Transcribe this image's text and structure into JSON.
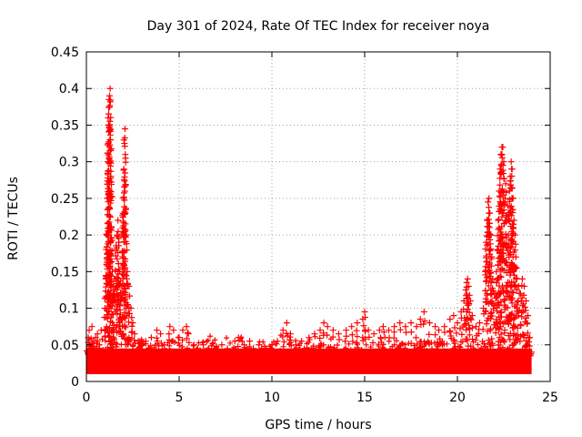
{
  "chart_data": {
    "type": "scatter",
    "title": "Day 301 of 2024, Rate Of TEC Index for receiver noya",
    "xlabel": "GPS time / hours",
    "ylabel": "ROTI / TECUs",
    "xlim": [
      0,
      25
    ],
    "ylim": [
      0,
      0.45
    ],
    "grid": true,
    "marker": "+",
    "color": "#ff0000",
    "x_ticks": [
      "0",
      "5",
      "10",
      "15",
      "20",
      "25"
    ],
    "y_ticks": [
      "0",
      "0.05",
      "0.1",
      "0.15",
      "0.2",
      "0.25",
      "0.3",
      "0.35",
      "0.4",
      "0.45"
    ],
    "x_tick_values": [
      0,
      5,
      10,
      15,
      20,
      25
    ],
    "y_tick_values": [
      0,
      0.05,
      0.1,
      0.15,
      0.2,
      0.25,
      0.3,
      0.35,
      0.4,
      0.45
    ],
    "background_band": {
      "x_range": [
        0,
        24
      ],
      "y_range": [
        0.01,
        0.045
      ],
      "note": "dense continuous cloud of points"
    },
    "series": [
      {
        "name": "ROTI",
        "points": [
          [
            0.1,
            0.06
          ],
          [
            0.15,
            0.07
          ],
          [
            0.2,
            0.05
          ],
          [
            0.3,
            0.075
          ],
          [
            0.4,
            0.055
          ],
          [
            0.5,
            0.06
          ],
          [
            0.6,
            0.065
          ],
          [
            0.7,
            0.05
          ],
          [
            0.8,
            0.07
          ],
          [
            1.0,
            0.1
          ],
          [
            1.05,
            0.14
          ],
          [
            1.1,
            0.2
          ],
          [
            1.12,
            0.25
          ],
          [
            1.15,
            0.3
          ],
          [
            1.18,
            0.325
          ],
          [
            1.2,
            0.35
          ],
          [
            1.22,
            0.385
          ],
          [
            1.25,
            0.39
          ],
          [
            1.28,
            0.4
          ],
          [
            1.3,
            0.33
          ],
          [
            1.32,
            0.28
          ],
          [
            1.35,
            0.21
          ],
          [
            1.4,
            0.15
          ],
          [
            1.45,
            0.13
          ],
          [
            1.5,
            0.12
          ],
          [
            1.55,
            0.14
          ],
          [
            1.6,
            0.18
          ],
          [
            1.65,
            0.2
          ],
          [
            1.7,
            0.22
          ],
          [
            1.75,
            0.19
          ],
          [
            1.8,
            0.15
          ],
          [
            1.85,
            0.11
          ],
          [
            1.9,
            0.13
          ],
          [
            1.95,
            0.21
          ],
          [
            2.0,
            0.25
          ],
          [
            2.02,
            0.29
          ],
          [
            2.05,
            0.325
          ],
          [
            2.08,
            0.345
          ],
          [
            2.1,
            0.23
          ],
          [
            2.15,
            0.2
          ],
          [
            2.2,
            0.15
          ],
          [
            2.3,
            0.13
          ],
          [
            2.4,
            0.1
          ],
          [
            2.5,
            0.08
          ],
          [
            2.6,
            0.065
          ],
          [
            2.8,
            0.055
          ],
          [
            3.0,
            0.05
          ],
          [
            3.2,
            0.055
          ],
          [
            3.5,
            0.06
          ],
          [
            3.8,
            0.07
          ],
          [
            4.0,
            0.065
          ],
          [
            4.2,
            0.05
          ],
          [
            4.5,
            0.075
          ],
          [
            4.7,
            0.07
          ],
          [
            5.0,
            0.06
          ],
          [
            5.2,
            0.07
          ],
          [
            5.4,
            0.075
          ],
          [
            5.5,
            0.065
          ],
          [
            5.8,
            0.05
          ],
          [
            6.0,
            0.045
          ],
          [
            6.3,
            0.05
          ],
          [
            6.6,
            0.045
          ],
          [
            7.0,
            0.048
          ],
          [
            7.3,
            0.05
          ],
          [
            7.6,
            0.045
          ],
          [
            8.0,
            0.055
          ],
          [
            8.2,
            0.06
          ],
          [
            8.5,
            0.05
          ],
          [
            8.8,
            0.055
          ],
          [
            9.0,
            0.045
          ],
          [
            9.3,
            0.05
          ],
          [
            9.6,
            0.048
          ],
          [
            10.0,
            0.05
          ],
          [
            10.3,
            0.055
          ],
          [
            10.6,
            0.07
          ],
          [
            10.8,
            0.08
          ],
          [
            11.0,
            0.065
          ],
          [
            11.3,
            0.05
          ],
          [
            11.6,
            0.055
          ],
          [
            12.0,
            0.06
          ],
          [
            12.3,
            0.065
          ],
          [
            12.6,
            0.07
          ],
          [
            12.8,
            0.08
          ],
          [
            13.0,
            0.075
          ],
          [
            13.3,
            0.07
          ],
          [
            13.6,
            0.065
          ],
          [
            14.0,
            0.07
          ],
          [
            14.3,
            0.075
          ],
          [
            14.6,
            0.08
          ],
          [
            14.9,
            0.085
          ],
          [
            15.0,
            0.095
          ],
          [
            15.2,
            0.07
          ],
          [
            15.5,
            0.065
          ],
          [
            15.8,
            0.07
          ],
          [
            16.0,
            0.075
          ],
          [
            16.3,
            0.07
          ],
          [
            16.6,
            0.075
          ],
          [
            16.9,
            0.08
          ],
          [
            17.2,
            0.075
          ],
          [
            17.5,
            0.08
          ],
          [
            17.8,
            0.075
          ],
          [
            18.0,
            0.085
          ],
          [
            18.2,
            0.095
          ],
          [
            18.5,
            0.08
          ],
          [
            18.8,
            0.075
          ],
          [
            19.0,
            0.07
          ],
          [
            19.3,
            0.075
          ],
          [
            19.6,
            0.085
          ],
          [
            19.8,
            0.09
          ],
          [
            20.0,
            0.08
          ],
          [
            20.2,
            0.095
          ],
          [
            20.35,
            0.11
          ],
          [
            20.45,
            0.125
          ],
          [
            20.5,
            0.135
          ],
          [
            20.55,
            0.14
          ],
          [
            20.6,
            0.13
          ],
          [
            20.7,
            0.11
          ],
          [
            20.8,
            0.09
          ],
          [
            21.0,
            0.075
          ],
          [
            21.2,
            0.08
          ],
          [
            21.4,
            0.1
          ],
          [
            21.5,
            0.15
          ],
          [
            21.55,
            0.19
          ],
          [
            21.6,
            0.22
          ],
          [
            21.65,
            0.245
          ],
          [
            21.7,
            0.25
          ],
          [
            21.75,
            0.23
          ],
          [
            21.8,
            0.2
          ],
          [
            21.85,
            0.17
          ],
          [
            21.9,
            0.14
          ],
          [
            22.0,
            0.12
          ],
          [
            22.1,
            0.15
          ],
          [
            22.15,
            0.18
          ],
          [
            22.2,
            0.22
          ],
          [
            22.25,
            0.26
          ],
          [
            22.3,
            0.29
          ],
          [
            22.35,
            0.31
          ],
          [
            22.4,
            0.32
          ],
          [
            22.45,
            0.32
          ],
          [
            22.5,
            0.3
          ],
          [
            22.6,
            0.27
          ],
          [
            22.7,
            0.24
          ],
          [
            22.75,
            0.2
          ],
          [
            22.8,
            0.26
          ],
          [
            22.85,
            0.28
          ],
          [
            22.9,
            0.3
          ],
          [
            22.95,
            0.29
          ],
          [
            23.0,
            0.25
          ],
          [
            23.05,
            0.22
          ],
          [
            23.1,
            0.2
          ],
          [
            23.15,
            0.17
          ],
          [
            23.2,
            0.14
          ],
          [
            23.3,
            0.13
          ],
          [
            23.4,
            0.12
          ],
          [
            23.5,
            0.14
          ],
          [
            23.6,
            0.13
          ],
          [
            23.7,
            0.11
          ],
          [
            23.8,
            0.09
          ],
          [
            23.9,
            0.06
          ],
          [
            24.0,
            0.04
          ]
        ]
      }
    ]
  }
}
